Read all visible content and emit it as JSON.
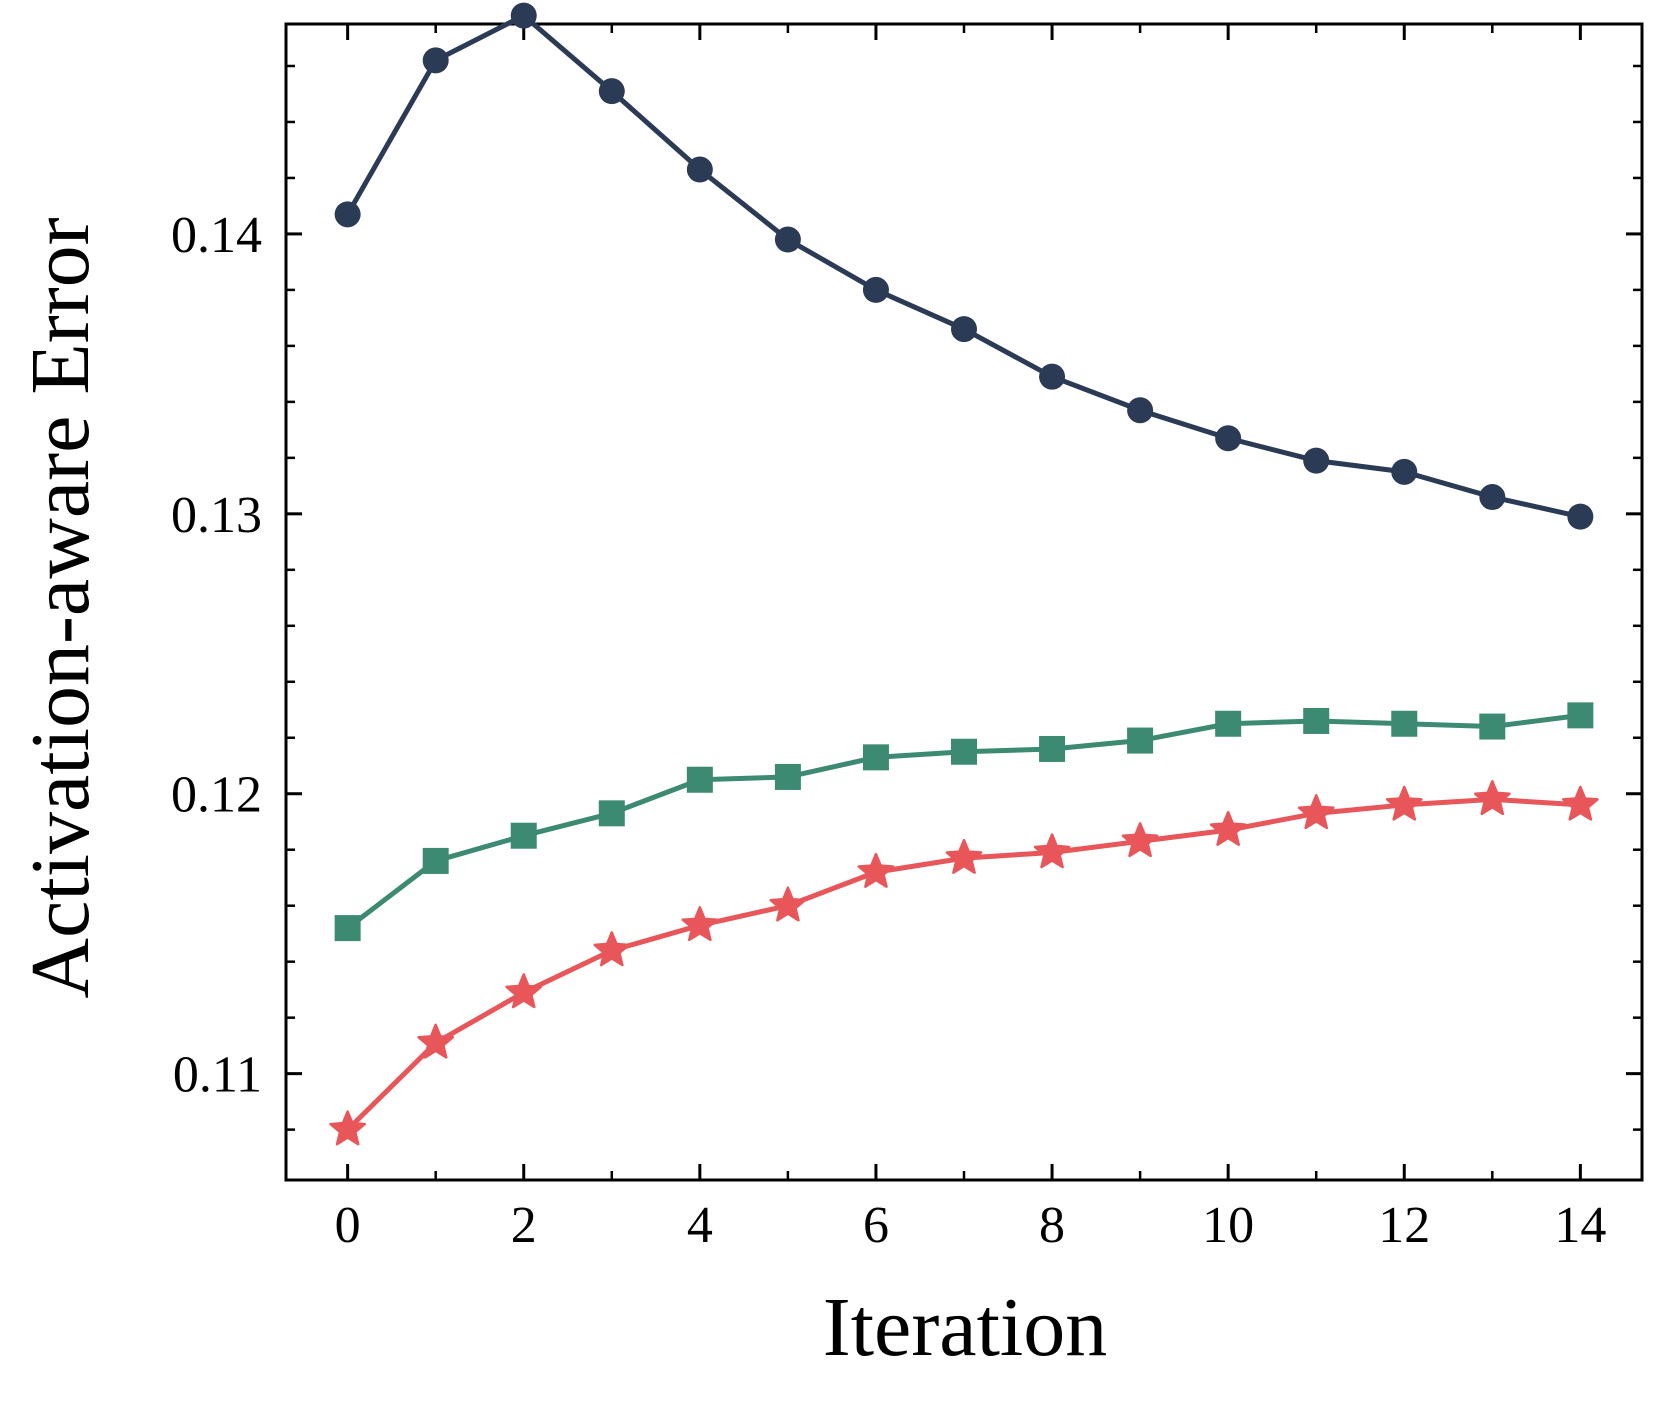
{
  "chart_data": {
    "type": "line",
    "title": "",
    "xlabel": "Iteration",
    "ylabel": "Activation-aware Error",
    "xlim": [
      -0.7,
      14.7
    ],
    "ylim": [
      0.1062,
      0.1475
    ],
    "x_ticks": [
      0,
      2,
      4,
      6,
      8,
      10,
      12,
      14
    ],
    "x_minor_ticks": [
      1,
      3,
      5,
      7,
      9,
      11,
      13
    ],
    "y_ticks": [
      0.11,
      0.12,
      0.13,
      0.14
    ],
    "y_tick_labels": [
      "0.11",
      "0.12",
      "0.13",
      "0.14"
    ],
    "y_minor_step": 0.002,
    "grid": false,
    "x": [
      0,
      1,
      2,
      3,
      4,
      5,
      6,
      7,
      8,
      9,
      10,
      11,
      12,
      13,
      14
    ],
    "series": [
      {
        "name": "series-navy-circle",
        "marker": "circle",
        "color": "#2b3a55",
        "values": [
          0.1407,
          0.1462,
          0.1478,
          0.1451,
          0.1423,
          0.1398,
          0.138,
          0.1366,
          0.1349,
          0.1337,
          0.1327,
          0.1319,
          0.1315,
          0.1306,
          0.1299
        ]
      },
      {
        "name": "series-teal-square",
        "marker": "square",
        "color": "#3d8a73",
        "values": [
          0.1152,
          0.1176,
          0.1185,
          0.1193,
          0.1205,
          0.1206,
          0.1213,
          0.1215,
          0.1216,
          0.1219,
          0.1225,
          0.1226,
          0.1225,
          0.1224,
          0.1228
        ]
      },
      {
        "name": "series-red-star",
        "marker": "star",
        "color": "#e8565a",
        "values": [
          0.108,
          0.1111,
          0.1129,
          0.1144,
          0.1153,
          0.116,
          0.1172,
          0.1177,
          0.1179,
          0.1183,
          0.1187,
          0.1193,
          0.1196,
          0.1198,
          0.1196
        ]
      }
    ]
  }
}
